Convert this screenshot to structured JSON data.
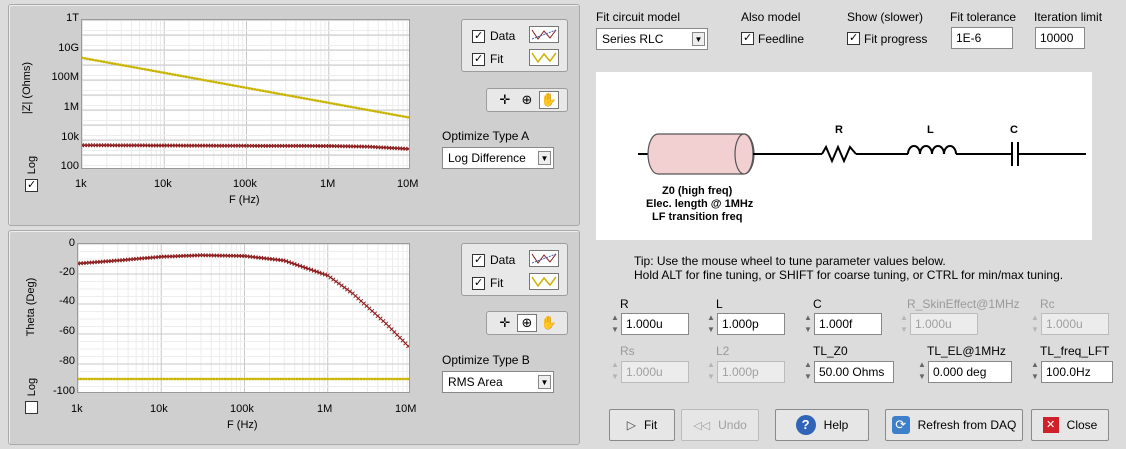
{
  "top_chart": {
    "ylabel": "|Z| (Ohms)",
    "xlabel": "F (Hz)",
    "ytick_labels": [
      "1T",
      "10G",
      "100M",
      "1M",
      "10k",
      "100"
    ],
    "xtick_labels": [
      "1k",
      "10k",
      "100k",
      "1M",
      "10M"
    ],
    "log_label": "Log",
    "log_checked": true,
    "legend": {
      "data_label": "Data",
      "fit_label": "Fit"
    },
    "optimize_label": "Optimize Type A",
    "optimize_value": "Log Difference"
  },
  "bottom_chart": {
    "ylabel": "Theta (Deg)",
    "xlabel": "F (Hz)",
    "ytick_labels": [
      "0",
      "-20",
      "-40",
      "-60",
      "-80",
      "-100"
    ],
    "xtick_labels": [
      "1k",
      "10k",
      "100k",
      "1M",
      "10M"
    ],
    "log_label": "Log",
    "log_checked": false,
    "legend": {
      "data_label": "Data",
      "fit_label": "Fit"
    },
    "optimize_label": "Optimize Type B",
    "optimize_value": "RMS Area"
  },
  "chart_data": [
    {
      "type": "line",
      "xscale": "log",
      "yscale": "log",
      "xlim": [
        1000,
        10000000
      ],
      "ylim": [
        100,
        1000000000000
      ],
      "xlabel": "F (Hz)",
      "ylabel": "|Z| (Ohms)",
      "legend": "top-right",
      "grid": true,
      "series": [
        {
          "name": "Data",
          "color": "#8b1a1a",
          "x": [
            1000,
            10000,
            100000,
            1000000,
            3000000,
            10000000
          ],
          "y": [
            4500,
            4300,
            4100,
            4000,
            3600,
            2500
          ]
        },
        {
          "name": "Fit",
          "color": "#c8b400",
          "x": [
            1000,
            10000,
            100000,
            1000000,
            10000000
          ],
          "y": [
            3000000000,
            300000000,
            30000000,
            3000000,
            300000
          ]
        }
      ]
    },
    {
      "type": "line",
      "xscale": "log",
      "xlim": [
        1000,
        10000000
      ],
      "ylim": [
        -100,
        0
      ],
      "xlabel": "F (Hz)",
      "ylabel": "Theta (Deg)",
      "legend": "top-right",
      "grid": true,
      "series": [
        {
          "name": "Data",
          "color": "#8b1a1a",
          "x": [
            1000,
            3000,
            10000,
            30000,
            100000,
            300000,
            1000000,
            2000000,
            5000000,
            10000000
          ],
          "y": [
            -13,
            -11,
            -8.5,
            -7.5,
            -8,
            -11,
            -21,
            -33,
            -53,
            -70
          ]
        },
        {
          "name": "Fit",
          "color": "#c8b400",
          "x": [
            1000,
            10000000
          ],
          "y": [
            -90,
            -90
          ]
        }
      ]
    }
  ],
  "controls": {
    "fit_model_label": "Fit circuit model",
    "fit_model_value": "Series RLC",
    "also_model_label": "Also model",
    "feedline_label": "Feedline",
    "feedline_checked": true,
    "show_label": "Show (slower)",
    "fit_progress_label": "Fit progress",
    "fit_progress_checked": true,
    "tolerance_label": "Fit tolerance",
    "tolerance_value": "1E-6",
    "iteration_label": "Iteration limit",
    "iteration_value": "10000"
  },
  "schematic": {
    "r_label": "R",
    "l_label": "L",
    "c_label": "C",
    "tl_line1": "Z0 (high freq)",
    "tl_line2": "Elec. length @ 1MHz",
    "tl_line3": "LF transition freq"
  },
  "tip": {
    "line1": "Tip: Use the mouse wheel to tune parameter values below.",
    "line2": "Hold ALT for fine tuning, or SHIFT for coarse tuning, or CTRL for min/max tuning."
  },
  "params": {
    "r_label": "R",
    "r_value": "1.000u",
    "l_label": "L",
    "l_value": "1.000p",
    "c_label": "C",
    "c_value": "1.000f",
    "rskin_label": "R_SkinEffect@1MHz",
    "rskin_value": "1.000u",
    "rc_label": "Rc",
    "rc_value": "1.000u",
    "rs_label": "Rs",
    "rs_value": "1.000u",
    "l2_label": "L2",
    "l2_value": "1.000p",
    "tlz0_label": "TL_Z0",
    "tlz0_value": "50.00 Ohms",
    "tlel_label": "TL_EL@1MHz",
    "tlel_value": "0.000 deg",
    "tlfreq_label": "TL_freq_LFT",
    "tlfreq_value": "100.0Hz"
  },
  "buttons": {
    "fit": "Fit",
    "undo": "Undo",
    "help": "Help",
    "refresh": "Refresh from DAQ",
    "close": "Close"
  }
}
